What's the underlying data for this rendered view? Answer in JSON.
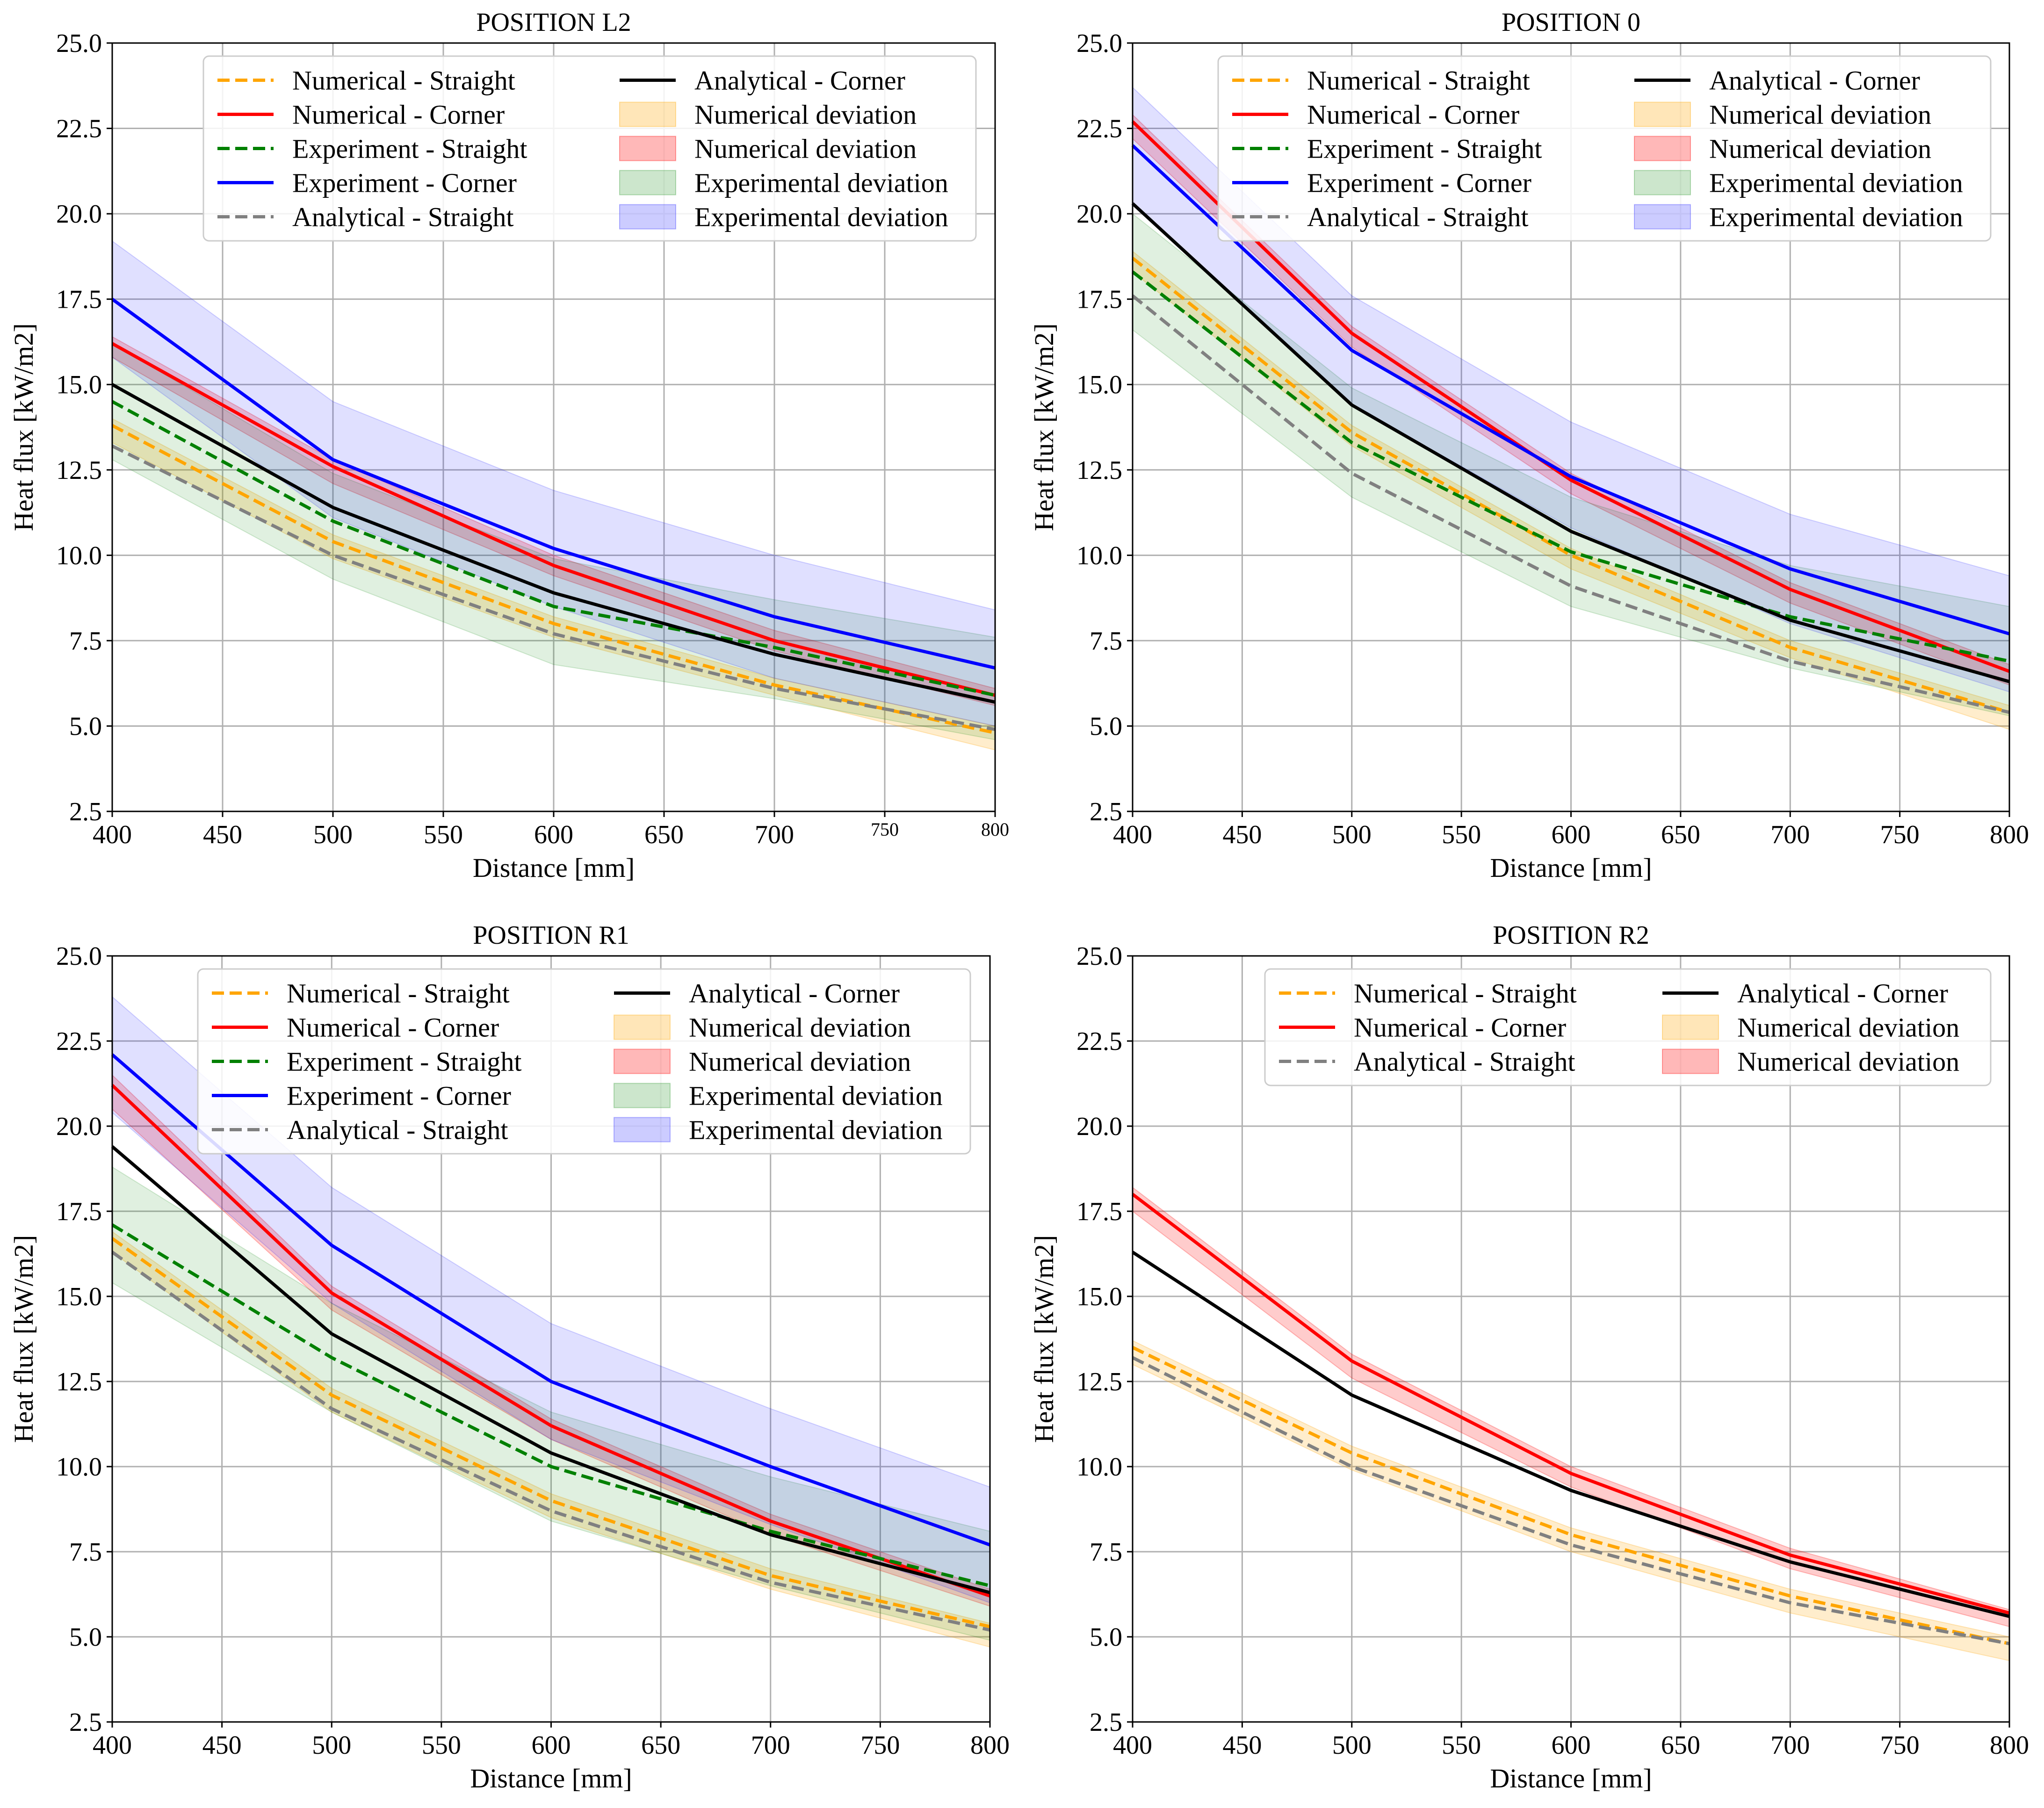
{
  "colors": {
    "numerical_straight": "#FFA500",
    "numerical_corner": "#FF0000",
    "experiment_straight": "#008000",
    "experiment_corner": "#0000FF",
    "analytical_straight": "#808080",
    "analytical_corner": "#000000"
  },
  "chart_data": [
    {
      "type": "line",
      "title": "POSITION L2",
      "xlabel": "Distance [mm]",
      "ylabel": "Heat flux [kW/m2]",
      "x": [
        400,
        500,
        600,
        700,
        800
      ],
      "xlim": [
        400,
        800
      ],
      "ylim": [
        2.5,
        25.0
      ],
      "xticks": [
        "400",
        "450",
        "500",
        "550",
        "600",
        "650",
        "700",
        "750",
        "800"
      ],
      "small_xticks": [
        "750",
        "800"
      ],
      "yticks": [
        "2.5",
        "5.0",
        "7.5",
        "10.0",
        "12.5",
        "15.0",
        "17.5",
        "20.0",
        "22.5",
        "25.0"
      ],
      "grid": true,
      "legend_position": "top-right",
      "series": [
        {
          "name": "Numerical - Straight",
          "style": "dashed",
          "color": "#FFA500",
          "values": [
            13.8,
            10.4,
            8.0,
            6.2,
            4.8
          ]
        },
        {
          "name": "Numerical - Corner",
          "style": "solid",
          "color": "#FF0000",
          "values": [
            16.2,
            12.6,
            9.7,
            7.5,
            5.9
          ]
        },
        {
          "name": "Experiment - Straight",
          "style": "dashed",
          "color": "#008000",
          "values": [
            14.5,
            11.0,
            8.5,
            7.3,
            5.9
          ]
        },
        {
          "name": "Experiment - Corner",
          "style": "solid",
          "color": "#0000FF",
          "values": [
            17.5,
            12.8,
            10.2,
            8.2,
            6.7
          ]
        },
        {
          "name": "Analytical - Straight",
          "style": "dashed",
          "color": "#808080",
          "values": [
            13.2,
            10.0,
            7.7,
            6.1,
            4.9
          ]
        },
        {
          "name": "Analytical - Corner",
          "style": "solid",
          "color": "#000000",
          "values": [
            15.0,
            11.4,
            8.9,
            7.1,
            5.7
          ]
        }
      ],
      "bands": [
        {
          "name": "Numerical deviation",
          "color": "#FFA500",
          "alpha": 0.2,
          "lower": [
            13.3,
            9.9,
            7.6,
            5.9,
            4.3
          ],
          "upper": [
            14.0,
            10.6,
            8.2,
            6.4,
            5.0
          ]
        },
        {
          "name": "Numerical deviation",
          "color": "#FF0000",
          "alpha": 0.2,
          "lower": [
            15.8,
            12.1,
            9.4,
            7.2,
            5.6
          ],
          "upper": [
            16.4,
            12.8,
            10.0,
            7.8,
            6.1
          ]
        },
        {
          "name": "Experimental deviation",
          "color": "#008000",
          "alpha": 0.12,
          "lower": [
            12.8,
            9.3,
            6.8,
            5.8,
            4.6
          ],
          "upper": [
            16.2,
            12.4,
            9.9,
            8.7,
            7.6
          ]
        },
        {
          "name": "Experimental deviation",
          "color": "#0000FF",
          "alpha": 0.12,
          "lower": [
            15.8,
            11.1,
            8.5,
            6.4,
            5.0
          ],
          "upper": [
            19.2,
            14.5,
            11.9,
            10.0,
            8.4
          ]
        }
      ],
      "legend_columns": [
        [
          "Numerical - Straight",
          "Numerical - Corner",
          "Experiment - Straight",
          "Experiment - Corner",
          "Analytical - Straight"
        ],
        [
          "Analytical - Corner",
          "Numerical deviation",
          "Numerical deviation",
          "Experimental deviation",
          "Experimental deviation"
        ]
      ]
    },
    {
      "type": "line",
      "title": "POSITION 0",
      "xlabel": "Distance [mm]",
      "ylabel": "Heat flux [kW/m2]",
      "x": [
        400,
        500,
        600,
        700,
        800
      ],
      "xlim": [
        400,
        800
      ],
      "ylim": [
        2.5,
        25.0
      ],
      "xticks": [
        "400",
        "450",
        "500",
        "550",
        "600",
        "650",
        "700",
        "750",
        "800"
      ],
      "small_xticks": [],
      "yticks": [
        "2.5",
        "5.0",
        "7.5",
        "10.0",
        "12.5",
        "15.0",
        "17.5",
        "20.0",
        "22.5",
        "25.0"
      ],
      "grid": true,
      "legend_position": "top-right",
      "series": [
        {
          "name": "Numerical - Straight",
          "style": "dashed",
          "color": "#FFA500",
          "values": [
            18.7,
            13.6,
            10.0,
            7.3,
            5.4
          ]
        },
        {
          "name": "Numerical - Corner",
          "style": "solid",
          "color": "#FF0000",
          "values": [
            22.7,
            16.5,
            12.2,
            9.0,
            6.6
          ]
        },
        {
          "name": "Experiment - Straight",
          "style": "dashed",
          "color": "#008000",
          "values": [
            18.3,
            13.3,
            10.1,
            8.2,
            6.9
          ]
        },
        {
          "name": "Experiment - Corner",
          "style": "solid",
          "color": "#0000FF",
          "values": [
            22.0,
            16.0,
            12.3,
            9.6,
            7.7
          ]
        },
        {
          "name": "Analytical - Straight",
          "style": "dashed",
          "color": "#808080",
          "values": [
            17.6,
            12.4,
            9.1,
            6.9,
            5.4
          ]
        },
        {
          "name": "Analytical - Corner",
          "style": "solid",
          "color": "#000000",
          "values": [
            20.3,
            14.4,
            10.7,
            8.1,
            6.3
          ]
        }
      ],
      "bands": [
        {
          "name": "Numerical deviation",
          "color": "#FFA500",
          "alpha": 0.2,
          "lower": [
            18.3,
            13.2,
            9.6,
            7.0,
            4.9
          ],
          "upper": [
            18.9,
            13.8,
            10.2,
            7.5,
            5.6
          ]
        },
        {
          "name": "Numerical deviation",
          "color": "#FF0000",
          "alpha": 0.2,
          "lower": [
            22.2,
            16.1,
            11.8,
            8.6,
            6.2
          ],
          "upper": [
            22.9,
            16.7,
            12.4,
            9.2,
            6.8
          ]
        },
        {
          "name": "Experimental deviation",
          "color": "#008000",
          "alpha": 0.12,
          "lower": [
            16.6,
            11.7,
            8.5,
            6.7,
            5.3
          ],
          "upper": [
            20.0,
            14.9,
            11.7,
            9.7,
            8.5
          ]
        },
        {
          "name": "Experimental deviation",
          "color": "#0000FF",
          "alpha": 0.12,
          "lower": [
            20.3,
            14.4,
            10.8,
            8.0,
            6.0
          ],
          "upper": [
            23.7,
            17.6,
            13.9,
            11.2,
            9.4
          ]
        }
      ],
      "legend_columns": [
        [
          "Numerical - Straight",
          "Numerical - Corner",
          "Experiment - Straight",
          "Experiment - Corner",
          "Analytical - Straight"
        ],
        [
          "Analytical - Corner",
          "Numerical deviation",
          "Numerical deviation",
          "Experimental deviation",
          "Experimental deviation"
        ]
      ]
    },
    {
      "type": "line",
      "title": "POSITION R1",
      "xlabel": "Distance [mm]",
      "ylabel": "Heat flux [kW/m2]",
      "x": [
        400,
        500,
        600,
        700,
        800
      ],
      "xlim": [
        400,
        800
      ],
      "ylim": [
        2.5,
        25.0
      ],
      "xticks": [
        "400",
        "450",
        "500",
        "550",
        "600",
        "650",
        "700",
        "750",
        "800"
      ],
      "small_xticks": [],
      "yticks": [
        "2.5",
        "5.0",
        "7.5",
        "10.0",
        "12.5",
        "15.0",
        "17.5",
        "20.0",
        "22.5",
        "25.0"
      ],
      "grid": true,
      "legend_position": "top-right",
      "series": [
        {
          "name": "Numerical - Straight",
          "style": "dashed",
          "color": "#FFA500",
          "values": [
            16.7,
            12.1,
            9.0,
            6.8,
            5.3
          ]
        },
        {
          "name": "Numerical - Corner",
          "style": "solid",
          "color": "#FF0000",
          "values": [
            21.2,
            15.1,
            11.2,
            8.4,
            6.2
          ]
        },
        {
          "name": "Experiment - Straight",
          "style": "dashed",
          "color": "#008000",
          "values": [
            17.1,
            13.2,
            10.0,
            8.1,
            6.5
          ]
        },
        {
          "name": "Experiment - Corner",
          "style": "solid",
          "color": "#0000FF",
          "values": [
            22.1,
            16.5,
            12.5,
            10.0,
            7.7
          ]
        },
        {
          "name": "Analytical - Straight",
          "style": "dashed",
          "color": "#808080",
          "values": [
            16.3,
            11.7,
            8.7,
            6.6,
            5.2
          ]
        },
        {
          "name": "Analytical - Corner",
          "style": "solid",
          "color": "#000000",
          "values": [
            19.4,
            13.9,
            10.4,
            8.0,
            6.3
          ]
        }
      ],
      "bands": [
        {
          "name": "Numerical deviation",
          "color": "#FFA500",
          "alpha": 0.2,
          "lower": [
            16.3,
            11.6,
            8.5,
            6.4,
            4.7
          ],
          "upper": [
            16.9,
            12.3,
            9.2,
            7.0,
            5.4
          ]
        },
        {
          "name": "Numerical deviation",
          "color": "#FF0000",
          "alpha": 0.2,
          "lower": [
            20.5,
            14.6,
            10.8,
            8.0,
            5.9
          ],
          "upper": [
            21.5,
            15.3,
            11.4,
            8.6,
            6.4
          ]
        },
        {
          "name": "Experimental deviation",
          "color": "#008000",
          "alpha": 0.12,
          "lower": [
            15.4,
            11.6,
            8.4,
            6.5,
            4.9
          ],
          "upper": [
            18.8,
            14.8,
            11.6,
            9.7,
            8.1
          ]
        },
        {
          "name": "Experimental deviation",
          "color": "#0000FF",
          "alpha": 0.12,
          "lower": [
            20.4,
            14.8,
            10.8,
            8.3,
            6.0
          ],
          "upper": [
            23.8,
            18.2,
            14.2,
            11.7,
            9.4
          ]
        }
      ],
      "legend_columns": [
        [
          "Numerical - Straight",
          "Numerical - Corner",
          "Experiment - Straight",
          "Experiment - Corner",
          "Analytical - Straight"
        ],
        [
          "Analytical - Corner",
          "Numerical deviation",
          "Numerical deviation",
          "Experimental deviation",
          "Experimental deviation"
        ]
      ]
    },
    {
      "type": "line",
      "title": "POSITION R2",
      "xlabel": "Distance [mm]",
      "ylabel": "Heat flux [kW/m2]",
      "x": [
        400,
        500,
        600,
        700,
        800
      ],
      "xlim": [
        400,
        800
      ],
      "ylim": [
        2.5,
        25.0
      ],
      "xticks": [
        "400",
        "450",
        "500",
        "550",
        "600",
        "650",
        "700",
        "750",
        "800"
      ],
      "small_xticks": [],
      "yticks": [
        "2.5",
        "5.0",
        "7.5",
        "10.0",
        "12.5",
        "15.0",
        "17.5",
        "20.0",
        "22.5",
        "25.0"
      ],
      "grid": true,
      "legend_position": "top-right",
      "series": [
        {
          "name": "Numerical - Straight",
          "style": "dashed",
          "color": "#FFA500",
          "values": [
            13.5,
            10.4,
            8.0,
            6.2,
            4.8
          ]
        },
        {
          "name": "Numerical - Corner",
          "style": "solid",
          "color": "#FF0000",
          "values": [
            18.0,
            13.1,
            9.8,
            7.4,
            5.7
          ]
        },
        {
          "name": "Analytical - Straight",
          "style": "dashed",
          "color": "#808080",
          "values": [
            13.2,
            10.0,
            7.7,
            6.0,
            4.8
          ]
        },
        {
          "name": "Analytical - Corner",
          "style": "solid",
          "color": "#000000",
          "values": [
            16.3,
            12.1,
            9.3,
            7.2,
            5.6
          ]
        }
      ],
      "bands": [
        {
          "name": "Numerical deviation",
          "color": "#FFA500",
          "alpha": 0.2,
          "lower": [
            13.0,
            9.9,
            7.5,
            5.7,
            4.3
          ],
          "upper": [
            13.7,
            10.6,
            8.2,
            6.4,
            5.0
          ]
        },
        {
          "name": "Numerical deviation",
          "color": "#FF0000",
          "alpha": 0.2,
          "lower": [
            17.5,
            12.6,
            9.4,
            7.0,
            5.3
          ],
          "upper": [
            18.2,
            13.3,
            10.0,
            7.6,
            5.8
          ]
        }
      ],
      "legend_columns": [
        [
          "Numerical - Straight",
          "Numerical - Corner",
          "Analytical - Straight"
        ],
        [
          "Analytical - Corner",
          "Numerical deviation",
          "Numerical deviation"
        ]
      ]
    }
  ]
}
